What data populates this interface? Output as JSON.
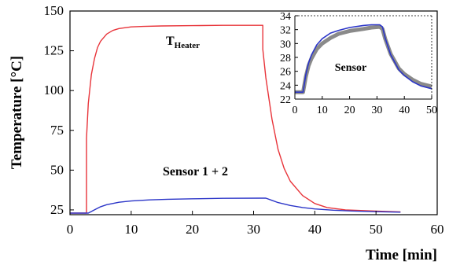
{
  "colors": {
    "heater": "#e8343a",
    "sensor": "#2b35c8",
    "sensor_gray": "#8a8a8a",
    "axes": "#000000"
  },
  "chart_data": [
    {
      "type": "line",
      "xlabel": "Time [min]",
      "ylabel": "Temperature [°C]",
      "xlim": [
        0,
        60
      ],
      "ylim": [
        22,
        150
      ],
      "x_ticks": [
        "0",
        "10",
        "20",
        "30",
        "40",
        "50",
        "60"
      ],
      "y_ticks": [
        "25",
        "50",
        "75",
        "100",
        "125",
        "150"
      ],
      "grid": false,
      "annotations": {
        "heater_main": "T",
        "heater_sub": "Heater",
        "sensor": "Sensor 1 + 2"
      },
      "series": [
        {
          "key": "heater",
          "x": [
            0,
            2.7,
            2.7,
            3.0,
            3.5,
            4.0,
            4.5,
            5.0,
            6.0,
            7.0,
            8.0,
            10,
            12,
            15,
            20,
            25,
            31.5,
            31.5,
            32,
            33,
            34,
            35,
            36,
            38,
            40,
            42,
            45,
            50,
            54
          ],
          "y": [
            23,
            23,
            70,
            92,
            110,
            120,
            127,
            131,
            135.5,
            137.8,
            139,
            140,
            140.3,
            140.6,
            140.8,
            141,
            141,
            126,
            108,
            82,
            63,
            51,
            43,
            34,
            29,
            26.5,
            25,
            24.2,
            23.8
          ]
        },
        {
          "key": "sensor",
          "x": [
            0,
            3,
            4,
            5,
            6,
            8,
            10,
            13,
            16,
            20,
            25,
            31,
            32,
            33,
            34,
            36,
            38,
            40,
            43,
            46,
            50,
            54
          ],
          "y": [
            23,
            23,
            25,
            27,
            28.3,
            29.8,
            30.6,
            31.3,
            31.7,
            32.0,
            32.3,
            32.4,
            32.4,
            31,
            29.6,
            27.8,
            26.5,
            25.6,
            24.8,
            24.3,
            23.9,
            23.6
          ]
        }
      ]
    },
    {
      "type": "line",
      "title": "Sensor",
      "xlim": [
        0,
        50
      ],
      "ylim": [
        22,
        34
      ],
      "x_ticks": [
        "0",
        "10",
        "20",
        "30",
        "40",
        "50"
      ],
      "y_ticks": [
        "22",
        "24",
        "26",
        "28",
        "30",
        "32",
        "34"
      ],
      "grid": false,
      "series": [
        {
          "key": "sensor_gray",
          "x": [
            0,
            3,
            4,
            5,
            6,
            8,
            10,
            13,
            16,
            20,
            25,
            28,
            31,
            32,
            33,
            35,
            38,
            40,
            43,
            46,
            50
          ],
          "y": [
            23,
            23,
            25.2,
            26.8,
            27.8,
            29.2,
            30.0,
            30.8,
            31.4,
            31.8,
            32.1,
            32.3,
            32.4,
            32.1,
            30.7,
            28.5,
            26.4,
            25.6,
            24.8,
            24.2,
            23.8
          ]
        },
        {
          "key": "sensor",
          "x": [
            0,
            3,
            4,
            5,
            6,
            8,
            10,
            13,
            16,
            20,
            25,
            28,
            31,
            32,
            33,
            35,
            38,
            40,
            43,
            46,
            50
          ],
          "y": [
            23,
            23,
            25.5,
            27.2,
            28.3,
            29.8,
            30.7,
            31.5,
            31.9,
            32.3,
            32.6,
            32.7,
            32.7,
            32.4,
            30.8,
            28.4,
            26.2,
            25.4,
            24.5,
            23.9,
            23.5
          ]
        }
      ]
    }
  ]
}
